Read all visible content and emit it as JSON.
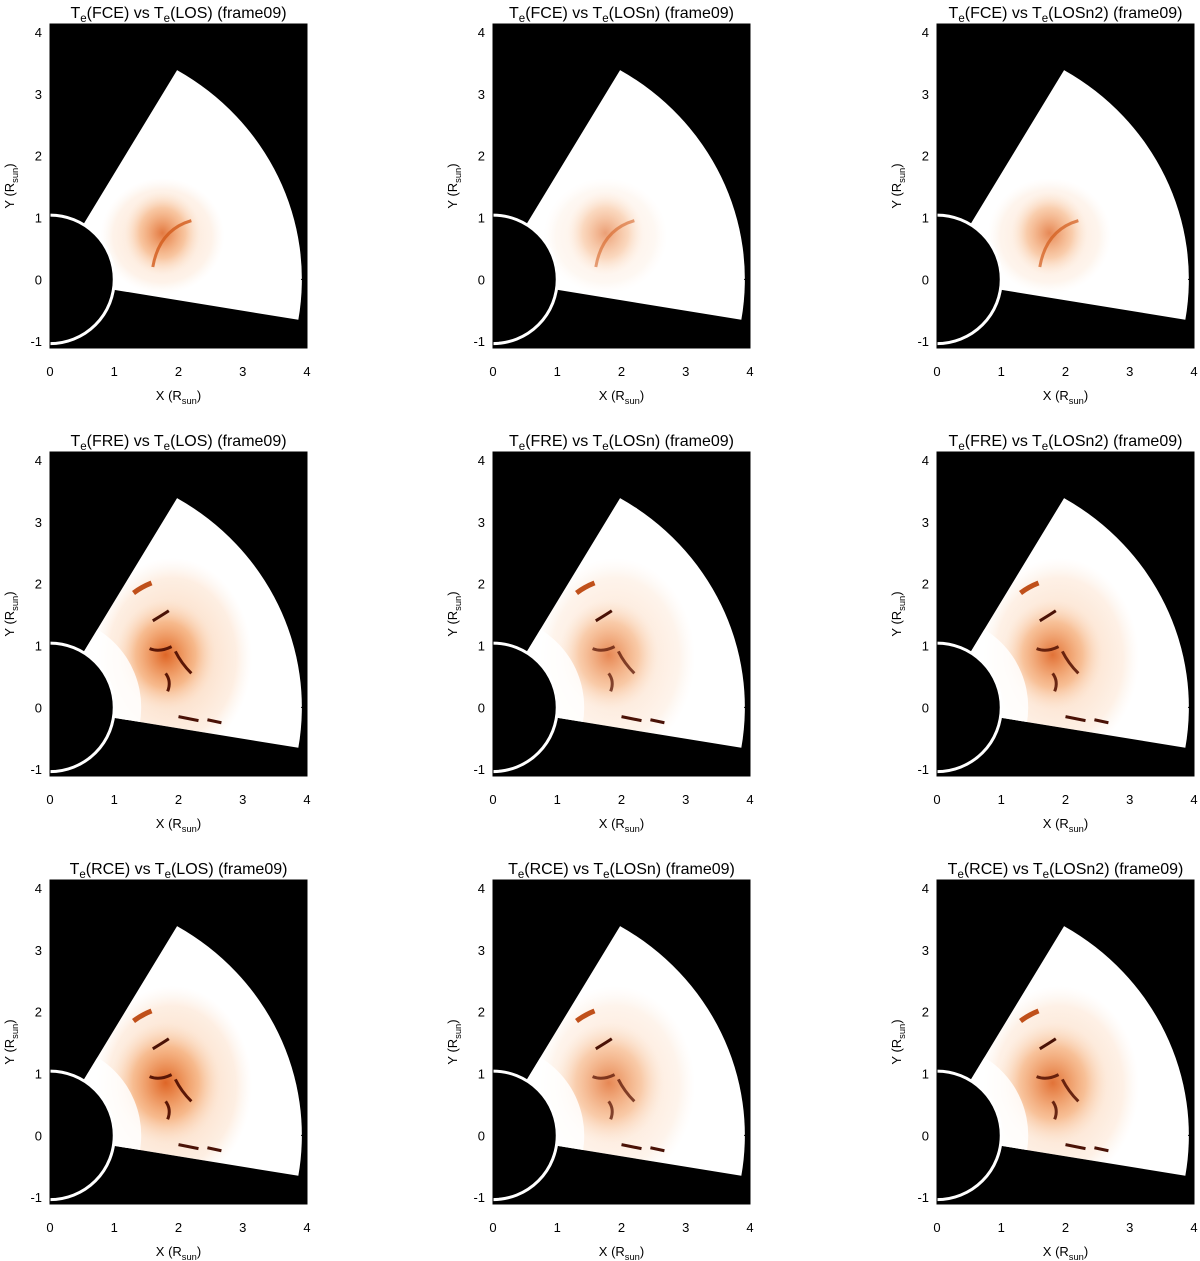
{
  "chart_data": [
    {
      "type": "image",
      "title": [
        "T",
        {
          "sub": "e"
        },
        "(FCE) vs T",
        {
          "sub": "e"
        },
        "(LOS) (frame09)"
      ],
      "xlabel": [
        "X (R",
        {
          "sub": "sun"
        },
        ")"
      ],
      "ylabel": [
        "Y (R",
        {
          "sub": "sun"
        },
        ")"
      ],
      "xlim": [
        0,
        4
      ],
      "ylim": [
        -1.11,
        4.13
      ],
      "xticks": [
        0,
        1,
        2,
        3,
        4
      ],
      "yticks": [
        -1,
        0,
        1,
        2,
        3,
        4
      ]
    },
    {
      "type": "image",
      "title": [
        "T",
        {
          "sub": "e"
        },
        "(FCE) vs T",
        {
          "sub": "e"
        },
        "(LOSn) (frame09)"
      ],
      "xlabel": [
        "X (R",
        {
          "sub": "sun"
        },
        ")"
      ],
      "ylabel": [
        "Y (R",
        {
          "sub": "sun"
        },
        ")"
      ],
      "xlim": [
        0,
        4
      ],
      "ylim": [
        -1.11,
        4.13
      ],
      "xticks": [
        0,
        1,
        2,
        3,
        4
      ],
      "yticks": [
        -1,
        0,
        1,
        2,
        3,
        4
      ]
    },
    {
      "type": "image",
      "title": [
        "T",
        {
          "sub": "e"
        },
        "(FCE) vs T",
        {
          "sub": "e"
        },
        "(LOSn2) (frame09)"
      ],
      "xlabel": [
        "X (R",
        {
          "sub": "sun"
        },
        ")"
      ],
      "ylabel": [
        "Y (R",
        {
          "sub": "sun"
        },
        ")"
      ],
      "xlim": [
        0,
        4
      ],
      "ylim": [
        -1.11,
        4.13
      ],
      "xticks": [
        0,
        1,
        2,
        3,
        4
      ],
      "yticks": [
        -1,
        0,
        1,
        2,
        3,
        4
      ]
    },
    {
      "type": "image",
      "title": [
        "T",
        {
          "sub": "e"
        },
        "(FRE) vs T",
        {
          "sub": "e"
        },
        "(LOS) (frame09)"
      ],
      "xlabel": [
        "X (R",
        {
          "sub": "sun"
        },
        ")"
      ],
      "ylabel": [
        "Y (R",
        {
          "sub": "sun"
        },
        ")"
      ],
      "xlim": [
        0,
        4
      ],
      "ylim": [
        -1.11,
        4.13
      ],
      "xticks": [
        0,
        1,
        2,
        3,
        4
      ],
      "yticks": [
        -1,
        0,
        1,
        2,
        3,
        4
      ]
    },
    {
      "type": "image",
      "title": [
        "T",
        {
          "sub": "e"
        },
        "(FRE) vs T",
        {
          "sub": "e"
        },
        "(LOSn) (frame09)"
      ],
      "xlabel": [
        "X (R",
        {
          "sub": "sun"
        },
        ")"
      ],
      "ylabel": [
        "Y (R",
        {
          "sub": "sun"
        },
        ")"
      ],
      "xlim": [
        0,
        4
      ],
      "ylim": [
        -1.11,
        4.13
      ],
      "xticks": [
        0,
        1,
        2,
        3,
        4
      ],
      "yticks": [
        -1,
        0,
        1,
        2,
        3,
        4
      ]
    },
    {
      "type": "image",
      "title": [
        "T",
        {
          "sub": "e"
        },
        "(FRE) vs T",
        {
          "sub": "e"
        },
        "(LOSn2) (frame09)"
      ],
      "xlabel": [
        "X (R",
        {
          "sub": "sun"
        },
        ")"
      ],
      "ylabel": [
        "Y (R",
        {
          "sub": "sun"
        },
        ")"
      ],
      "xlim": [
        0,
        4
      ],
      "ylim": [
        -1.11,
        4.13
      ],
      "xticks": [
        0,
        1,
        2,
        3,
        4
      ],
      "yticks": [
        -1,
        0,
        1,
        2,
        3,
        4
      ]
    },
    {
      "type": "image",
      "title": [
        "T",
        {
          "sub": "e"
        },
        "(RCE) vs T",
        {
          "sub": "e"
        },
        "(LOS) (frame09)"
      ],
      "xlabel": [
        "X (R",
        {
          "sub": "sun"
        },
        ")"
      ],
      "ylabel": [
        "Y (R",
        {
          "sub": "sun"
        },
        ")"
      ],
      "xlim": [
        0,
        4
      ],
      "ylim": [
        -1.11,
        4.13
      ],
      "xticks": [
        0,
        1,
        2,
        3,
        4
      ],
      "yticks": [
        -1,
        0,
        1,
        2,
        3,
        4
      ]
    },
    {
      "type": "image",
      "title": [
        "T",
        {
          "sub": "e"
        },
        "(RCE) vs T",
        {
          "sub": "e"
        },
        "(LOSn) (frame09)"
      ],
      "xlabel": [
        "X (R",
        {
          "sub": "sun"
        },
        ")"
      ],
      "ylabel": [
        "Y (R",
        {
          "sub": "sun"
        },
        ")"
      ],
      "xlim": [
        0,
        4
      ],
      "ylim": [
        -1.11,
        4.13
      ],
      "xticks": [
        0,
        1,
        2,
        3,
        4
      ],
      "yticks": [
        -1,
        0,
        1,
        2,
        3,
        4
      ]
    },
    {
      "type": "image",
      "title": [
        "T",
        {
          "sub": "e"
        },
        "(RCE) vs T",
        {
          "sub": "e"
        },
        "(LOSn2) (frame09)"
      ],
      "xlabel": [
        "X (R",
        {
          "sub": "sun"
        },
        ")"
      ],
      "ylabel": [
        "Y (R",
        {
          "sub": "sun"
        },
        ")"
      ],
      "xlim": [
        0,
        4
      ],
      "ylim": [
        -1.11,
        4.13
      ],
      "xticks": [
        0,
        1,
        2,
        3,
        4
      ],
      "yticks": [
        -1,
        0,
        1,
        2,
        3,
        4
      ]
    }
  ]
}
